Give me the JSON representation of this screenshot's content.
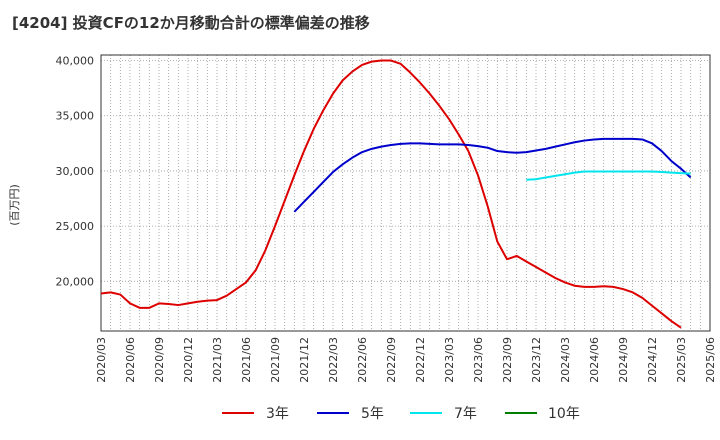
{
  "chart_data": {
    "type": "line",
    "title": "[4204]  投資CFの12か月移動合計の標準偏差の推移",
    "ylabel": "(百万円)",
    "xlabel": "",
    "ylim": [
      15500,
      40500
    ],
    "yticks": [
      20000,
      25000,
      30000,
      35000,
      40000
    ],
    "ytick_labels": [
      "20,000",
      "25,000",
      "30,000",
      "35,000",
      "40,000"
    ],
    "x_start": "2020/03",
    "xtick_labels": [
      "2020/03",
      "2020/06",
      "2020/09",
      "2020/12",
      "2021/03",
      "2021/06",
      "2021/09",
      "2021/12",
      "2022/03",
      "2022/06",
      "2022/09",
      "2022/12",
      "2023/03",
      "2023/06",
      "2023/09",
      "2023/12",
      "2024/03",
      "2024/06",
      "2024/09",
      "2024/12",
      "2025/03",
      "2025/06"
    ],
    "grid": true,
    "legend_position": "bottom",
    "colors": {
      "3年": "#dd0000",
      "5年": "#0000cc",
      "7年": "#00e5ee",
      "10年": "#008000"
    },
    "series": [
      {
        "name": "3年",
        "start": "2020/03",
        "values": [
          18900,
          19000,
          18800,
          18000,
          17600,
          17600,
          18000,
          17950,
          17850,
          18000,
          18150,
          18250,
          18300,
          18700,
          19300,
          19900,
          21000,
          22800,
          25000,
          27300,
          29600,
          31800,
          33800,
          35500,
          37000,
          38200,
          39000,
          39600,
          39900,
          40000,
          40000,
          39700,
          38900,
          38000,
          37000,
          35900,
          34700,
          33300,
          31800,
          29600,
          26800,
          23600,
          22000,
          22300,
          21800,
          21300,
          20800,
          20300,
          19900,
          19600,
          19500,
          19500,
          19550,
          19500,
          19300,
          19000,
          18500,
          17800,
          17100,
          16400,
          15800
        ]
      },
      {
        "name": "5年",
        "start": "2021/11",
        "values": [
          26300,
          27200,
          28100,
          29000,
          29900,
          30600,
          31200,
          31700,
          32000,
          32200,
          32350,
          32450,
          32500,
          32500,
          32450,
          32400,
          32400,
          32400,
          32350,
          32250,
          32100,
          31800,
          31700,
          31650,
          31700,
          31850,
          32000,
          32200,
          32400,
          32600,
          32750,
          32850,
          32900,
          32900,
          32900,
          32900,
          32850,
          32500,
          31800,
          30900,
          30200,
          29400
        ]
      },
      {
        "name": "7年",
        "start": "2023/11",
        "values": [
          29200,
          29250,
          29400,
          29550,
          29700,
          29850,
          29950,
          29950,
          29950,
          29950,
          29950,
          29950,
          29950,
          29950,
          29900,
          29850,
          29800,
          29750
        ]
      },
      {
        "name": "10年",
        "start": "2025/03",
        "values": []
      }
    ]
  }
}
